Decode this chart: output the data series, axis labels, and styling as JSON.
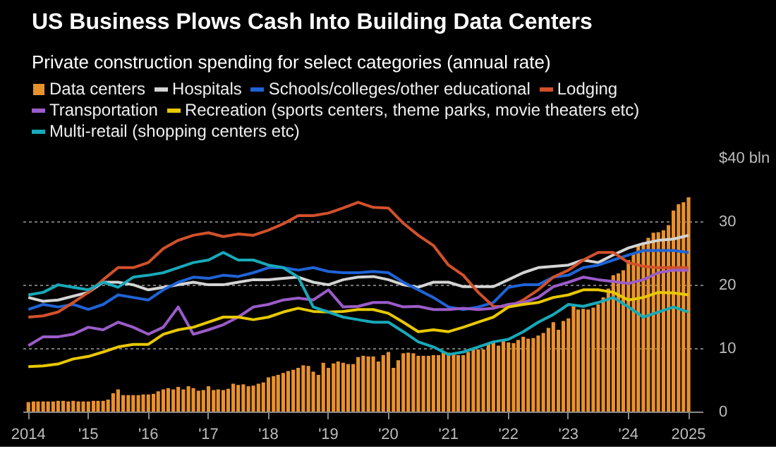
{
  "chart_data": {
    "type": "bar",
    "title": "US Business Plows Cash Into Building Data Centers",
    "subtitle": "Private construction spending for select categories (annual rate)",
    "x": [
      "2014-01",
      "2014-02",
      "2014-03",
      "2014-04",
      "2014-05",
      "2014-06",
      "2014-07",
      "2014-08",
      "2014-09",
      "2014-10",
      "2014-11",
      "2014-12",
      "2015-01",
      "2015-02",
      "2015-03",
      "2015-04",
      "2015-05",
      "2015-06",
      "2015-07",
      "2015-08",
      "2015-09",
      "2015-10",
      "2015-11",
      "2015-12",
      "2016-01",
      "2016-02",
      "2016-03",
      "2016-04",
      "2016-05",
      "2016-06",
      "2016-07",
      "2016-08",
      "2016-09",
      "2016-10",
      "2016-11",
      "2016-12",
      "2017-01",
      "2017-02",
      "2017-03",
      "2017-04",
      "2017-05",
      "2017-06",
      "2017-07",
      "2017-08",
      "2017-09",
      "2017-10",
      "2017-11",
      "2017-12",
      "2018-01",
      "2018-02",
      "2018-03",
      "2018-04",
      "2018-05",
      "2018-06",
      "2018-07",
      "2018-08",
      "2018-09",
      "2018-10",
      "2018-11",
      "2018-12",
      "2019-01",
      "2019-02",
      "2019-03",
      "2019-04",
      "2019-05",
      "2019-06",
      "2019-07",
      "2019-08",
      "2019-09",
      "2019-10",
      "2019-11",
      "2019-12",
      "2020-01",
      "2020-02",
      "2020-03",
      "2020-04",
      "2020-05",
      "2020-06",
      "2020-07",
      "2020-08",
      "2020-09",
      "2020-10",
      "2020-11",
      "2020-12",
      "2021-01",
      "2021-02",
      "2021-03",
      "2021-04",
      "2021-05",
      "2021-06",
      "2021-07",
      "2021-08",
      "2021-09",
      "2021-10",
      "2021-11",
      "2021-12",
      "2022-01",
      "2022-02",
      "2022-03",
      "2022-04",
      "2022-05",
      "2022-06",
      "2022-07",
      "2022-08",
      "2022-09",
      "2022-10",
      "2022-11",
      "2022-12",
      "2023-01",
      "2023-02",
      "2023-03",
      "2023-04",
      "2023-05",
      "2023-06",
      "2023-07",
      "2023-08",
      "2023-09",
      "2023-10",
      "2023-11",
      "2023-12",
      "2024-01",
      "2024-02",
      "2024-03",
      "2024-04",
      "2024-05",
      "2024-06",
      "2024-07",
      "2024-08",
      "2024-09",
      "2024-10",
      "2024-11",
      "2024-12",
      "2025-01"
    ],
    "series": [
      {
        "name": "Data centers",
        "color": "#e8922c",
        "values": [
          1.6,
          1.7,
          1.7,
          1.7,
          1.7,
          1.7,
          1.8,
          1.8,
          1.7,
          1.8,
          1.7,
          1.7,
          1.7,
          1.8,
          1.8,
          1.8,
          2.0,
          3.0,
          3.6,
          2.7,
          2.7,
          2.7,
          2.7,
          2.8,
          2.8,
          2.9,
          3.3,
          3.6,
          3.8,
          3.6,
          4.0,
          3.6,
          4.1,
          3.8,
          3.4,
          3.5,
          4.1,
          3.5,
          3.6,
          3.5,
          3.7,
          4.5,
          4.3,
          4.4,
          4.1,
          4.2,
          4.5,
          4.7,
          5.5,
          5.7,
          5.9,
          6.2,
          6.5,
          6.7,
          7.0,
          7.4,
          7.3,
          6.4,
          5.9,
          7.8,
          7.0,
          7.7,
          8.0,
          7.8,
          7.6,
          7.6,
          8.7,
          8.9,
          8.8,
          8.8,
          8.0,
          9.0,
          9.5,
          7.0,
          8.2,
          9.3,
          9.4,
          9.3,
          8.9,
          8.9,
          8.9,
          9.0,
          9.0,
          9.6,
          9.4,
          9.3,
          9.0,
          9.0,
          9.5,
          10.0,
          9.9,
          9.9,
          10.7,
          11.0,
          10.5,
          11.4,
          11.0,
          10.9,
          11.4,
          11.9,
          11.6,
          11.7,
          12.1,
          12.5,
          13.3,
          14.2,
          13.0,
          14.4,
          14.8,
          16.7,
          16.2,
          16.3,
          16.2,
          16.5,
          17.0,
          18.1,
          19.5,
          21.6,
          21.9,
          22.4,
          24.0,
          25.0,
          26.3,
          26.8,
          27.5,
          28.3,
          28.4,
          28.7,
          29.5,
          31.8,
          32.8,
          33.1,
          33.9
        ]
      },
      {
        "name": "Hospitals",
        "type": "line",
        "color": "#d4d4d4",
        "x": [
          "2014-01",
          "2014-04",
          "2014-07",
          "2014-10",
          "2015-01",
          "2015-04",
          "2015-07",
          "2015-10",
          "2016-01",
          "2016-04",
          "2016-07",
          "2016-10",
          "2017-01",
          "2017-04",
          "2017-07",
          "2017-10",
          "2018-01",
          "2018-04",
          "2018-07",
          "2018-10",
          "2019-01",
          "2019-04",
          "2019-07",
          "2019-10",
          "2020-01",
          "2020-04",
          "2020-07",
          "2020-10",
          "2021-01",
          "2021-04",
          "2021-07",
          "2021-10",
          "2022-01",
          "2022-04",
          "2022-07",
          "2022-10",
          "2023-01",
          "2023-04",
          "2023-07",
          "2023-10",
          "2024-01",
          "2024-04",
          "2024-07",
          "2024-10",
          "2025-01"
        ],
        "values": [
          18.1,
          17.5,
          17.7,
          18.3,
          18.9,
          20.5,
          20.5,
          20.1,
          19.3,
          19.7,
          20.1,
          20.5,
          20.1,
          20.1,
          20.5,
          20.9,
          20.9,
          21.1,
          21.3,
          20.5,
          20.1,
          20.9,
          21.3,
          21.4,
          20.9,
          20.1,
          19.7,
          20.5,
          20.5,
          19.8,
          19.8,
          19.8,
          20.9,
          22.0,
          22.8,
          23.0,
          23.2,
          24.0,
          23.6,
          24.8,
          25.9,
          26.6,
          27.1,
          27.3,
          27.9
        ]
      },
      {
        "name": "Schools/colleges/other educational",
        "type": "line",
        "color": "#1f63d6",
        "x": [
          "2014-01",
          "2014-04",
          "2014-07",
          "2014-10",
          "2015-01",
          "2015-04",
          "2015-07",
          "2015-10",
          "2016-01",
          "2016-04",
          "2016-07",
          "2016-10",
          "2017-01",
          "2017-04",
          "2017-07",
          "2017-10",
          "2018-01",
          "2018-04",
          "2018-07",
          "2018-10",
          "2019-01",
          "2019-04",
          "2019-07",
          "2019-10",
          "2020-01",
          "2020-04",
          "2020-07",
          "2020-10",
          "2021-01",
          "2021-04",
          "2021-07",
          "2021-10",
          "2022-01",
          "2022-04",
          "2022-07",
          "2022-10",
          "2023-01",
          "2023-04",
          "2023-07",
          "2023-10",
          "2024-01",
          "2024-04",
          "2024-07",
          "2024-10",
          "2025-01"
        ],
        "values": [
          16.2,
          17.0,
          16.6,
          17.0,
          16.2,
          17.0,
          18.5,
          18.1,
          17.7,
          19.3,
          20.5,
          21.3,
          21.1,
          21.6,
          21.4,
          22.0,
          22.8,
          22.8,
          22.4,
          22.8,
          22.2,
          22.0,
          22.0,
          22.2,
          22.0,
          20.5,
          19.3,
          18.1,
          16.6,
          16.2,
          16.6,
          17.3,
          19.7,
          20.1,
          20.1,
          21.3,
          21.6,
          22.8,
          23.2,
          24.0,
          24.8,
          25.5,
          25.5,
          25.5,
          25.2
        ]
      },
      {
        "name": "Lodging",
        "type": "line",
        "color": "#d2512b",
        "x": [
          "2014-01",
          "2014-04",
          "2014-07",
          "2014-10",
          "2015-01",
          "2015-04",
          "2015-07",
          "2015-10",
          "2016-01",
          "2016-04",
          "2016-07",
          "2016-10",
          "2017-01",
          "2017-04",
          "2017-07",
          "2017-10",
          "2018-01",
          "2018-04",
          "2018-07",
          "2018-10",
          "2019-01",
          "2019-04",
          "2019-07",
          "2019-10",
          "2020-01",
          "2020-04",
          "2020-07",
          "2020-10",
          "2021-01",
          "2021-04",
          "2021-07",
          "2021-10",
          "2022-01",
          "2022-04",
          "2022-07",
          "2022-10",
          "2023-01",
          "2023-04",
          "2023-07",
          "2023-10",
          "2024-01",
          "2024-04",
          "2024-07",
          "2024-10",
          "2025-01"
        ],
        "values": [
          15.0,
          15.2,
          15.8,
          17.3,
          18.9,
          20.9,
          22.8,
          22.8,
          23.6,
          25.8,
          27.1,
          27.9,
          28.3,
          27.7,
          28.1,
          27.9,
          28.7,
          29.7,
          31.0,
          31.0,
          31.4,
          32.2,
          33.1,
          32.3,
          32.2,
          29.8,
          27.9,
          26.3,
          23.2,
          21.6,
          18.9,
          16.7,
          16.6,
          17.7,
          19.3,
          21.3,
          22.4,
          24.0,
          25.2,
          25.2,
          23.6,
          23.0,
          22.8,
          22.8,
          22.8
        ]
      },
      {
        "name": "Transportation",
        "type": "line",
        "color": "#9b5cc9",
        "x": [
          "2014-01",
          "2014-04",
          "2014-07",
          "2014-10",
          "2015-01",
          "2015-04",
          "2015-07",
          "2015-10",
          "2016-01",
          "2016-04",
          "2016-07",
          "2016-10",
          "2017-01",
          "2017-04",
          "2017-07",
          "2017-10",
          "2018-01",
          "2018-04",
          "2018-07",
          "2018-10",
          "2019-01",
          "2019-04",
          "2019-07",
          "2019-10",
          "2020-01",
          "2020-04",
          "2020-07",
          "2020-10",
          "2021-01",
          "2021-04",
          "2021-07",
          "2021-10",
          "2022-01",
          "2022-04",
          "2022-07",
          "2022-10",
          "2023-01",
          "2023-04",
          "2023-07",
          "2023-10",
          "2024-01",
          "2024-04",
          "2024-07",
          "2024-10",
          "2025-01"
        ],
        "values": [
          10.5,
          11.9,
          11.9,
          12.3,
          13.4,
          13.0,
          14.2,
          13.4,
          12.3,
          13.4,
          16.6,
          12.3,
          13.0,
          13.8,
          15.0,
          16.6,
          17.0,
          17.7,
          18.0,
          17.7,
          19.3,
          16.6,
          16.7,
          17.3,
          17.3,
          16.6,
          16.7,
          16.2,
          16.2,
          16.4,
          16.2,
          16.4,
          17.0,
          17.3,
          18.1,
          19.8,
          20.5,
          21.3,
          20.9,
          20.6,
          20.3,
          20.9,
          22.0,
          22.4,
          22.4
        ]
      },
      {
        "name": "Recreation (sports centers, theme parks, movie theaters etc)",
        "type": "line",
        "color": "#e8c800",
        "x": [
          "2014-01",
          "2014-04",
          "2014-07",
          "2014-10",
          "2015-01",
          "2015-04",
          "2015-07",
          "2015-10",
          "2016-01",
          "2016-04",
          "2016-07",
          "2016-10",
          "2017-01",
          "2017-04",
          "2017-07",
          "2017-10",
          "2018-01",
          "2018-04",
          "2018-07",
          "2018-10",
          "2019-01",
          "2019-04",
          "2019-07",
          "2019-10",
          "2020-01",
          "2020-04",
          "2020-07",
          "2020-10",
          "2021-01",
          "2021-04",
          "2021-07",
          "2021-10",
          "2022-01",
          "2022-04",
          "2022-07",
          "2022-10",
          "2023-01",
          "2023-04",
          "2023-07",
          "2023-10",
          "2024-01",
          "2024-04",
          "2024-07",
          "2024-10",
          "2025-01"
        ],
        "values": [
          7.2,
          7.3,
          7.6,
          8.4,
          8.8,
          9.5,
          10.3,
          10.7,
          10.7,
          12.3,
          13.0,
          13.4,
          14.2,
          15.0,
          15.0,
          14.6,
          15.0,
          15.8,
          16.4,
          15.9,
          15.8,
          15.9,
          16.2,
          16.2,
          15.6,
          14.2,
          12.7,
          13.0,
          12.7,
          13.4,
          14.2,
          15.0,
          16.6,
          17.0,
          17.3,
          18.1,
          18.5,
          19.3,
          19.3,
          18.9,
          17.7,
          18.1,
          18.9,
          18.8,
          18.5
        ]
      },
      {
        "name": "Multi-retail (shopping centers etc)",
        "type": "line",
        "color": "#18a9b9",
        "x": [
          "2014-01",
          "2014-04",
          "2014-07",
          "2014-10",
          "2015-01",
          "2015-04",
          "2015-07",
          "2015-10",
          "2016-01",
          "2016-04",
          "2016-07",
          "2016-10",
          "2017-01",
          "2017-04",
          "2017-07",
          "2017-10",
          "2018-01",
          "2018-04",
          "2018-07",
          "2018-10",
          "2019-01",
          "2019-04",
          "2019-07",
          "2019-10",
          "2020-01",
          "2020-04",
          "2020-07",
          "2020-10",
          "2021-01",
          "2021-04",
          "2021-07",
          "2021-10",
          "2022-01",
          "2022-04",
          "2022-07",
          "2022-10",
          "2023-01",
          "2023-04",
          "2023-07",
          "2023-10",
          "2024-01",
          "2024-04",
          "2024-07",
          "2024-10",
          "2025-01"
        ],
        "values": [
          18.5,
          18.9,
          20.1,
          19.7,
          19.3,
          20.5,
          19.7,
          21.3,
          21.6,
          22.0,
          22.8,
          23.6,
          24.0,
          25.2,
          24.0,
          24.0,
          23.2,
          22.8,
          21.3,
          16.6,
          15.8,
          15.0,
          14.6,
          14.2,
          14.2,
          12.7,
          11.1,
          10.3,
          9.1,
          9.5,
          10.3,
          11.1,
          11.5,
          12.7,
          14.2,
          15.4,
          17.0,
          16.7,
          17.3,
          18.1,
          16.6,
          15.0,
          15.8,
          16.6,
          15.8
        ]
      }
    ],
    "xlim": [
      "2013-12",
      "2025-04"
    ],
    "xticks": [
      {
        "value": "2014-01",
        "label": "2014"
      },
      {
        "value": "2015-01",
        "label": "'15"
      },
      {
        "value": "2016-01",
        "label": "'16"
      },
      {
        "value": "2017-01",
        "label": "'17"
      },
      {
        "value": "2018-01",
        "label": "'18"
      },
      {
        "value": "2019-01",
        "label": "'19"
      },
      {
        "value": "2020-01",
        "label": "'20"
      },
      {
        "value": "2021-01",
        "label": "'21"
      },
      {
        "value": "2022-01",
        "label": "'22"
      },
      {
        "value": "2023-01",
        "label": "'23"
      },
      {
        "value": "2024-01",
        "label": "'24"
      },
      {
        "value": "2025-01",
        "label": "2025"
      }
    ],
    "ylim": [
      0,
      40
    ],
    "yticks": [
      0,
      10,
      20,
      30,
      {
        "value": 40,
        "label": "$40 bln"
      }
    ],
    "grid": "y",
    "legend": "top"
  }
}
